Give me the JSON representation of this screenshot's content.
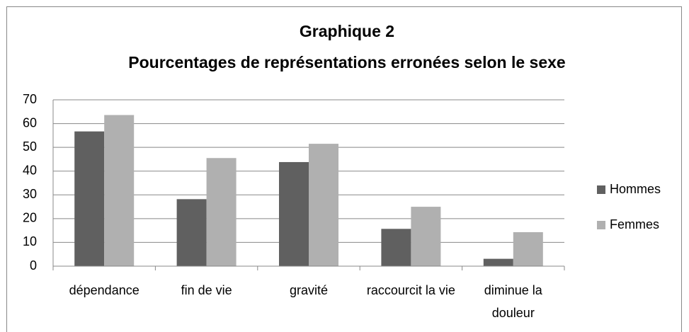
{
  "chart_data": {
    "type": "bar",
    "title": [
      "Graphique 2",
      "Pourcentages de représentations erronées selon le sexe"
    ],
    "categories": [
      "dépendance",
      "fin de vie",
      "gravité",
      "raccourcit la vie",
      "diminue la douleur"
    ],
    "series": [
      {
        "name": "Hommes",
        "color": "#606060",
        "values": [
          56.7,
          28.2,
          43.8,
          15.7,
          3.1
        ]
      },
      {
        "name": "Femmes",
        "color": "#b0b0b0",
        "values": [
          63.6,
          45.5,
          51.5,
          25.0,
          14.3
        ]
      }
    ],
    "ylim": [
      0,
      70
    ],
    "yticks": [
      0,
      10,
      20,
      30,
      40,
      50,
      60,
      70
    ],
    "grid": true,
    "legend": "right"
  }
}
